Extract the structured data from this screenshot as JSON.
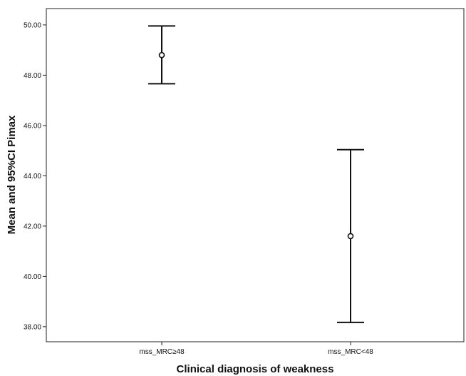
{
  "chart_data": {
    "type": "error-bar",
    "title": "",
    "xlabel": "Clinical diagnosis of weakness",
    "ylabel": "Mean and 95%CI Pimax",
    "categories": [
      "mss_MRC≥48",
      "mss_MRC<48"
    ],
    "series": [
      {
        "means": [
          48.8,
          41.6
        ],
        "ci_lower": [
          47.66,
          38.17
        ],
        "ci_upper": [
          49.96,
          45.04
        ]
      }
    ],
    "ylim": [
      37.4,
      50.65
    ],
    "yticks": [
      38.0,
      40.0,
      42.0,
      44.0,
      46.0,
      48.0,
      50.0
    ],
    "ytick_labels": [
      "38.00",
      "40.00",
      "42.00",
      "44.00",
      "46.00",
      "48.00",
      "50.00"
    ],
    "grid": false,
    "legend": "none"
  }
}
